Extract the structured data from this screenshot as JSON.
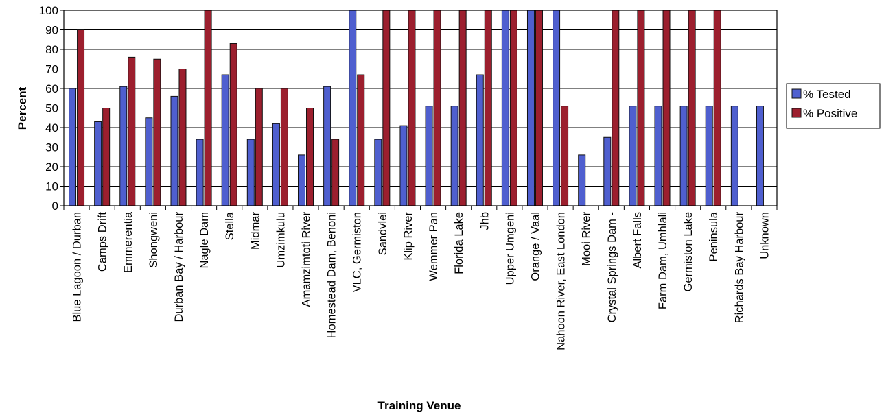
{
  "chart_data": {
    "type": "bar",
    "xlabel": "Training Venue",
    "ylabel": "Percent",
    "ylim": [
      0,
      100
    ],
    "yticks": [
      0,
      10,
      20,
      30,
      40,
      50,
      60,
      70,
      80,
      90,
      100
    ],
    "grid": "horizontal",
    "legend_position": "right",
    "categories": [
      "Blue Lagoon / Durban",
      "Camps Drift",
      "Emmerentia",
      "Shongweni",
      "Durban Bay / Harbour",
      "Nagle Dam",
      "Stella",
      "Midmar",
      "Umzimkulu",
      "Amamzimtoti River",
      "Homestead Dam, Benoni",
      "VLC, Germiston",
      "Sandvlei",
      "Klip River",
      "Wemmer Pan",
      "Florida Lake",
      "Jhb",
      "Upper Umgeni",
      "Orange / Vaal",
      "Nahoon River, East London",
      "Mooi River",
      "Crystal Springs Dam -",
      "Albert Falls",
      "Farm Dam, Umhlali",
      "Germiston Lake",
      "Peninsula",
      "Richards Bay Harbour",
      "Unknown"
    ],
    "series": [
      {
        "name": "% Tested",
        "color": "#4f5fcf",
        "values": [
          60,
          43,
          61,
          45,
          56,
          34,
          67,
          34,
          42,
          26,
          61,
          100,
          34,
          41,
          51,
          51,
          67,
          100,
          100,
          100,
          26,
          35,
          51,
          51,
          51,
          51,
          51,
          51
        ]
      },
      {
        "name": "% Positive",
        "color": "#9c1f2e",
        "values": [
          90,
          50,
          76,
          75,
          70,
          100,
          83,
          60,
          60,
          50,
          34,
          67,
          100,
          100,
          100,
          100,
          100,
          100,
          100,
          51,
          0,
          100,
          100,
          100,
          100,
          100,
          0,
          0
        ]
      }
    ]
  }
}
